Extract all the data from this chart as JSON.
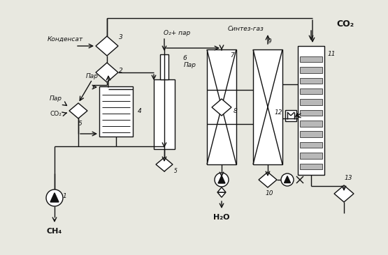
{
  "bg_color": "#e8e8e0",
  "line_color": "#111111",
  "labels": {
    "condensat": "Конденсат",
    "o2_par": "O₂+ пар",
    "par_top": "Пар",
    "par_left": "Пар",
    "co2_in": "CO₂",
    "ch4": "CH₄",
    "h2o": "H₂O",
    "syngas": "Синтез-газ",
    "co2_out": "CO₂",
    "par6": "Пар",
    "n1": "1",
    "n2": "2",
    "n3": "3",
    "n4": "4",
    "n5": "5",
    "n6": "6",
    "n7": "7",
    "n8": "8",
    "n9": "9",
    "n10": "10",
    "n11": "11",
    "n12": "12",
    "n13": "13"
  }
}
